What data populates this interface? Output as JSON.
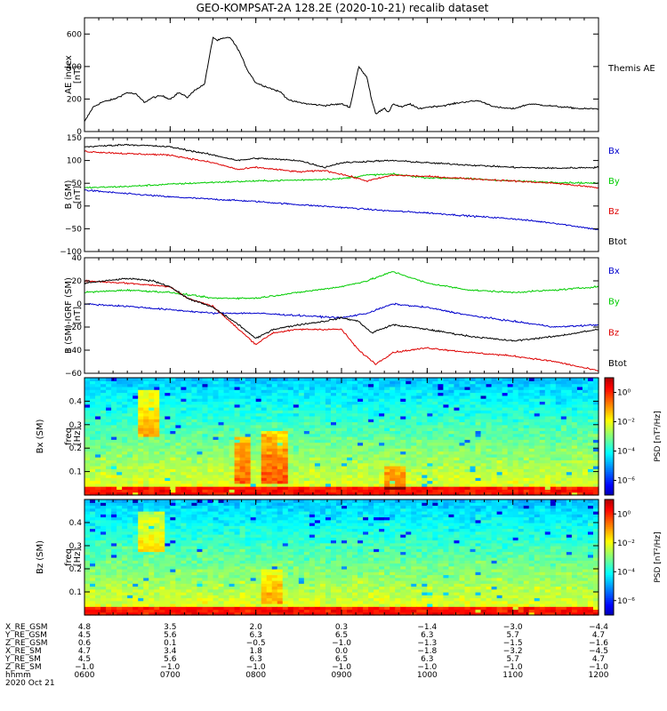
{
  "title": "GEO-KOMPSAT-2A 128.2E (2020-10-21) recalib dataset",
  "colors": {
    "bx": "#0000cc",
    "by": "#00cc00",
    "bz": "#dd0000",
    "btot": "#000000"
  },
  "time_axis": {
    "range": [
      6.0,
      12.0
    ],
    "ticks": [
      6,
      7,
      8,
      9,
      10,
      11,
      12
    ]
  },
  "chart_data": [
    {
      "type": "line",
      "id": "ae",
      "ylabel": "AE index",
      "yunits": "[nT]",
      "ylim": [
        0,
        700
      ],
      "yticks": [
        0,
        200,
        400,
        600
      ],
      "legend": [
        "Themis AE"
      ],
      "series": [
        {
          "name": "Themis AE",
          "color": "#000000",
          "x": [
            6.0,
            6.1,
            6.2,
            6.35,
            6.5,
            6.6,
            6.7,
            6.8,
            6.9,
            7.0,
            7.1,
            7.2,
            7.3,
            7.4,
            7.5,
            7.55,
            7.6,
            7.7,
            7.8,
            7.9,
            8.0,
            8.1,
            8.2,
            8.3,
            8.35,
            8.4,
            8.6,
            8.8,
            9.0,
            9.1,
            9.2,
            9.3,
            9.35,
            9.4,
            9.5,
            9.55,
            9.6,
            9.7,
            9.8,
            9.9,
            10.0,
            10.2,
            10.4,
            10.6,
            10.8,
            11.0,
            11.2,
            11.4,
            11.6,
            11.8,
            12.0
          ],
          "y": [
            60,
            150,
            180,
            200,
            240,
            230,
            180,
            210,
            220,
            200,
            240,
            210,
            260,
            290,
            580,
            560,
            570,
            580,
            500,
            380,
            300,
            280,
            260,
            240,
            210,
            190,
            170,
            160,
            170,
            150,
            400,
            330,
            200,
            110,
            140,
            120,
            170,
            150,
            170,
            140,
            150,
            160,
            180,
            190,
            150,
            140,
            170,
            160,
            150,
            140,
            140
          ]
        }
      ]
    },
    {
      "type": "line",
      "id": "bsm",
      "ylabel": "B (SM)",
      "yunits": "[nT]",
      "ylim": [
        -100,
        150
      ],
      "yticks": [
        -100,
        -50,
        0,
        50,
        100,
        150
      ],
      "legend": [
        "Bx",
        "By",
        "Bz",
        "Btot"
      ],
      "series": [
        {
          "name": "Bx",
          "color": "#0000cc",
          "x": [
            6,
            6.5,
            7,
            7.5,
            8,
            8.5,
            9,
            9.5,
            10,
            10.5,
            11,
            11.5,
            12
          ],
          "y": [
            35,
            27,
            20,
            15,
            10,
            3,
            -3,
            -10,
            -15,
            -22,
            -28,
            -38,
            -52
          ]
        },
        {
          "name": "By",
          "color": "#00cc00",
          "x": [
            6,
            6.5,
            7,
            7.5,
            8,
            8.5,
            9,
            9.3,
            9.6,
            10,
            10.5,
            11,
            11.5,
            12
          ],
          "y": [
            40,
            43,
            48,
            52,
            55,
            57,
            60,
            68,
            70,
            62,
            60,
            55,
            52,
            50
          ]
        },
        {
          "name": "Bz",
          "color": "#dd0000",
          "x": [
            6,
            6.5,
            7,
            7.5,
            7.8,
            8,
            8.5,
            8.8,
            9,
            9.3,
            9.6,
            10,
            10.5,
            11,
            11.5,
            12
          ],
          "y": [
            120,
            115,
            112,
            95,
            80,
            85,
            75,
            78,
            70,
            55,
            68,
            65,
            60,
            55,
            50,
            40
          ]
        },
        {
          "name": "Btot",
          "color": "#000000",
          "x": [
            6,
            6.5,
            7,
            7.5,
            7.8,
            8,
            8.5,
            8.8,
            9,
            9.3,
            9.6,
            10,
            10.5,
            11,
            11.5,
            12
          ],
          "y": [
            130,
            135,
            130,
            112,
            100,
            105,
            100,
            85,
            95,
            98,
            100,
            95,
            90,
            85,
            83,
            85
          ]
        }
      ]
    },
    {
      "type": "line",
      "id": "bsm-igrf",
      "ylabel": "B (SM)-IGRF (SM)",
      "yunits": "[nT]",
      "ylim": [
        -60,
        40
      ],
      "yticks": [
        -60,
        -40,
        -20,
        0,
        20,
        40
      ],
      "legend": [
        "Bx",
        "By",
        "Bz",
        "Btot"
      ],
      "series": [
        {
          "name": "Bx",
          "color": "#0000cc",
          "x": [
            6,
            6.5,
            7,
            7.5,
            8,
            8.5,
            9,
            9.3,
            9.6,
            10,
            10.5,
            11,
            11.5,
            12
          ],
          "y": [
            0,
            -2,
            -5,
            -8,
            -8,
            -10,
            -12,
            -8,
            0,
            -3,
            -10,
            -15,
            -20,
            -18
          ]
        },
        {
          "name": "By",
          "color": "#00cc00",
          "x": [
            6,
            6.5,
            7,
            7.5,
            8,
            8.5,
            9,
            9.3,
            9.6,
            10,
            10.5,
            11,
            11.5,
            12
          ],
          "y": [
            10,
            12,
            10,
            5,
            5,
            10,
            15,
            20,
            28,
            18,
            12,
            10,
            12,
            15
          ]
        },
        {
          "name": "Bz",
          "color": "#dd0000",
          "x": [
            6,
            6.5,
            7,
            7.2,
            7.5,
            7.8,
            8.0,
            8.2,
            8.5,
            8.8,
            9.0,
            9.2,
            9.4,
            9.6,
            10,
            10.5,
            11,
            11.5,
            12
          ],
          "y": [
            20,
            18,
            15,
            5,
            -2,
            -22,
            -35,
            -25,
            -22,
            -22,
            -22,
            -40,
            -52,
            -42,
            -38,
            -42,
            -45,
            -50,
            -58
          ]
        },
        {
          "name": "Btot",
          "color": "#000000",
          "x": [
            6,
            6.5,
            6.8,
            7,
            7.2,
            7.5,
            7.8,
            8.0,
            8.2,
            8.5,
            8.8,
            9.0,
            9.2,
            9.35,
            9.6,
            10,
            10.5,
            11,
            11.5,
            12
          ],
          "y": [
            18,
            22,
            20,
            15,
            5,
            -3,
            -18,
            -30,
            -22,
            -18,
            -15,
            -12,
            -15,
            -25,
            -18,
            -22,
            -28,
            -32,
            -28,
            -22
          ]
        }
      ]
    },
    {
      "type": "heatmap",
      "id": "bx-spectrogram",
      "component": "Bx (SM)",
      "ylabel": "freq",
      "yunits": "[Hz]",
      "ylim": [
        0,
        0.5
      ],
      "yticks": [
        0.1,
        0.2,
        0.3,
        0.4
      ],
      "colorbar_label": "PSD [nT²/Hz]",
      "colorbar_ticks": [
        "10⁰",
        "10⁻²",
        "10⁻⁴",
        "10⁻⁶"
      ],
      "colorbar_exponents": [
        0,
        -2,
        -4,
        -6
      ],
      "colorbar_range": [
        -7,
        1
      ],
      "hotspots": [
        {
          "t0": 6.65,
          "t1": 6.9,
          "f0": 0.25,
          "f1": 0.45,
          "boost": 1.0
        },
        {
          "t0": 7.75,
          "t1": 7.95,
          "f0": 0.05,
          "f1": 0.25,
          "boost": 0.8
        },
        {
          "t0": 8.05,
          "t1": 8.35,
          "f0": 0.05,
          "f1": 0.28,
          "boost": 0.85
        },
        {
          "t0": 9.5,
          "t1": 9.75,
          "f0": 0.03,
          "f1": 0.12,
          "boost": 0.6
        }
      ]
    },
    {
      "type": "heatmap",
      "id": "bz-spectrogram",
      "component": "Bz (SM)",
      "ylabel": "freq",
      "yunits": "[Hz]",
      "ylim": [
        0,
        0.5
      ],
      "yticks": [
        0.1,
        0.2,
        0.3,
        0.4
      ],
      "colorbar_label": "PSD [nT²/Hz]",
      "colorbar_ticks": [
        "10⁰",
        "10⁻²",
        "10⁻⁴",
        "10⁻⁶"
      ],
      "colorbar_exponents": [
        0,
        -2,
        -4,
        -6
      ],
      "colorbar_range": [
        -7,
        1
      ],
      "hotspots": [
        {
          "t0": 6.65,
          "t1": 6.95,
          "f0": 0.28,
          "f1": 0.45,
          "boost": 0.8
        },
        {
          "t0": 8.05,
          "t1": 8.3,
          "f0": 0.05,
          "f1": 0.2,
          "boost": 0.5
        }
      ]
    }
  ],
  "ephemeris": {
    "rows": [
      {
        "label": "X_RE_GSM",
        "values": [
          "4.8",
          "3.5",
          "2.0",
          "0.3",
          "−1.4",
          "−3.0",
          "−4.4"
        ]
      },
      {
        "label": "Y_RE_GSM",
        "values": [
          "4.5",
          "5.6",
          "6.3",
          "6.5",
          "6.3",
          "5.7",
          "4.7"
        ]
      },
      {
        "label": "Z_RE_GSM",
        "values": [
          "0.6",
          "0.1",
          "−0.5",
          "−1.0",
          "−1.3",
          "−1.5",
          "−1.6"
        ]
      },
      {
        "label": "X_RE_SM",
        "values": [
          "4.7",
          "3.4",
          "1.8",
          "0.0",
          "−1.8",
          "−3.2",
          "−4.5"
        ]
      },
      {
        "label": "Y_RE_SM",
        "values": [
          "4.5",
          "5.6",
          "6.3",
          "6.5",
          "6.3",
          "5.7",
          "4.7"
        ]
      },
      {
        "label": "Z_RE_SM",
        "values": [
          "−1.0",
          "−1.0",
          "−1.0",
          "−1.0",
          "−1.0",
          "−1.0",
          "−1.0"
        ]
      },
      {
        "label": "hhmm",
        "values": [
          "0600",
          "0700",
          "0800",
          "0900",
          "1000",
          "1100",
          "1200"
        ]
      }
    ],
    "date": "2020 Oct 21"
  }
}
